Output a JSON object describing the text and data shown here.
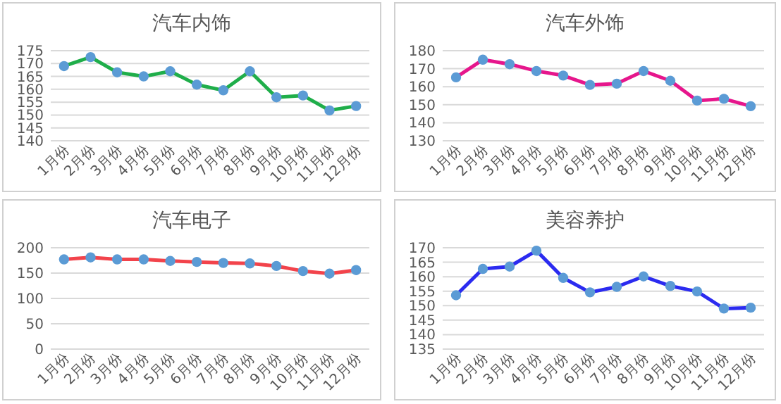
{
  "chart_data": [
    {
      "type": "line",
      "title": "汽车内饰",
      "categories": [
        "1月份",
        "2月份",
        "3月份",
        "4月份",
        "5月份",
        "6月份",
        "7月份",
        "8月份",
        "9月份",
        "10月份",
        "11月份",
        "12月份"
      ],
      "marker": "circle",
      "grid": "y",
      "ylim": [
        140,
        175
      ],
      "yticks": [
        140,
        145,
        150,
        155,
        160,
        165,
        170,
        175
      ],
      "series": [
        {
          "color": "#1fae4a",
          "values": [
            169,
            172.5,
            166.6,
            165,
            167,
            161.8,
            159.6,
            167,
            156.9,
            157.6,
            151.8,
            153.5
          ]
        }
      ]
    },
    {
      "type": "line",
      "title": "汽车外饰",
      "categories": [
        "1月份",
        "2月份",
        "3月份",
        "4月份",
        "5月份",
        "6月份",
        "7月份",
        "8月份",
        "9月份",
        "10月份",
        "11月份",
        "12月份"
      ],
      "marker": "circle",
      "grid": "y",
      "ylim": [
        130,
        180
      ],
      "yticks": [
        130,
        140,
        150,
        160,
        170,
        180
      ],
      "series": [
        {
          "color": "#e6168c",
          "values": [
            165.2,
            175,
            172.5,
            168.7,
            166.2,
            161,
            161.7,
            168.7,
            163.3,
            152.3,
            153.3,
            149.2
          ]
        }
      ]
    },
    {
      "type": "line",
      "title": "汽车电子",
      "categories": [
        "1月份",
        "2月份",
        "3月份",
        "4月份",
        "5月份",
        "6月份",
        "7月份",
        "8月份",
        "9月份",
        "10月份",
        "11月份",
        "12月份"
      ],
      "marker": "circle",
      "grid": "y",
      "ylim": [
        0,
        200
      ],
      "yticks": [
        0,
        50,
        100,
        150,
        200
      ],
      "series": [
        {
          "color": "#f2434b",
          "values": [
            177,
            181,
            177,
            177,
            174,
            172,
            170,
            169,
            164,
            154,
            149,
            156
          ]
        }
      ]
    },
    {
      "type": "line",
      "title": "美容养护",
      "categories": [
        "1月份",
        "2月份",
        "3月份",
        "4月份",
        "5月份",
        "6月份",
        "7月份",
        "8月份",
        "9月份",
        "10月份",
        "11月份",
        "12月份"
      ],
      "marker": "circle",
      "grid": "y",
      "ylim": [
        135,
        170
      ],
      "yticks": [
        135,
        140,
        145,
        150,
        155,
        160,
        165,
        170
      ],
      "series": [
        {
          "color": "#2b2bf0",
          "values": [
            153.6,
            162.7,
            163.5,
            169,
            159.6,
            154.6,
            156.5,
            160.1,
            156.8,
            154.9,
            149,
            149.3
          ]
        }
      ]
    }
  ]
}
